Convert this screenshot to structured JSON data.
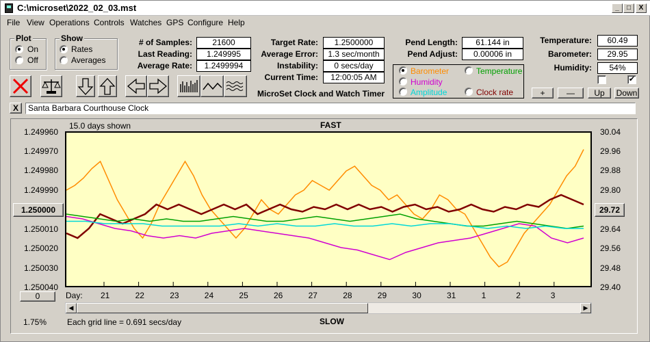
{
  "window": {
    "title": "C:\\microset\\2022_02_03.mst"
  },
  "title_buttons": {
    "min": "_",
    "max": "□",
    "close": "X"
  },
  "menu": [
    "File",
    "View",
    "Operations",
    "Controls",
    "Watches",
    "GPS",
    "Configure",
    "Help"
  ],
  "plot_group": {
    "title": "Plot",
    "options": [
      "On",
      "Off"
    ],
    "selected": "On"
  },
  "show_group": {
    "title": "Show",
    "options": [
      "Rates",
      "Averages"
    ],
    "selected": "Rates"
  },
  "stats_left": [
    {
      "label": "# of Samples:",
      "value": "21600"
    },
    {
      "label": "Last Reading:",
      "value": "1.249995"
    },
    {
      "label": "Average Rate:",
      "value": "1.2499994"
    }
  ],
  "stats_mid": [
    {
      "label": "Target Rate:",
      "value": "1.2500000"
    },
    {
      "label": "Average Error:",
      "value": "1.3 sec/month"
    },
    {
      "label": "Instability:",
      "value": "0 secs/day"
    },
    {
      "label": "Current Time:",
      "value": "12:00:05 AM"
    }
  ],
  "stats_pend": [
    {
      "label": "Pend Length:",
      "value": "61.144 in"
    },
    {
      "label": "Pend Adjust:",
      "value": "0.00006 in"
    }
  ],
  "stats_env": [
    {
      "label": "Temperature:",
      "value": "60.49"
    },
    {
      "label": "Barometer:",
      "value": "29.95"
    },
    {
      "label": "Humidity:",
      "value": "54%"
    }
  ],
  "app_caption": "MicroSet Clock and Watch Timer",
  "sensor_options": [
    {
      "label": "Barometer",
      "color": "#ff8c00",
      "selected": true
    },
    {
      "label": "Temperature",
      "color": "#00a000",
      "selected": false
    },
    {
      "label": "Humidity",
      "color": "#d000d0",
      "selected": false
    },
    {
      "label": "Clock rate",
      "color": "#800000",
      "selected": false
    },
    {
      "label": "Amplitude",
      "color": "#00d8d8",
      "selected": false
    }
  ],
  "adjust_buttons": [
    "+",
    "—",
    "Up",
    "Down"
  ],
  "checkboxes": {
    "left": "",
    "right": "✔"
  },
  "clock_name": "Santa Barbara Courthouse Clock",
  "clear_name_label": "X",
  "chart_info": {
    "days_shown": "15.0 days shown",
    "fast_label": "FAST",
    "slow_label": "SLOW",
    "grid_note": "Each grid line = 0.691 secs/day",
    "percent": "1.75%",
    "center_rate_button": "1.250000",
    "baro_readout_button": "29.72",
    "zero_button": "0",
    "day_label": "Day:"
  },
  "chart_data": {
    "type": "line",
    "x_ticks": [
      "21",
      "22",
      "23",
      "24",
      "25",
      "26",
      "27",
      "28",
      "29",
      "30",
      "31",
      "1",
      "2",
      "3"
    ],
    "y_left_ticks": [
      "1.249960",
      "1.249970",
      "1.249980",
      "1.249990",
      "1.250000",
      "1.250010",
      "1.250020",
      "1.250030",
      "1.250040"
    ],
    "y_right_ticks": [
      "30.04",
      "29.96",
      "29.88",
      "29.80",
      "29.72",
      "29.64",
      "29.56",
      "29.48",
      "29.40"
    ],
    "ylim_left": [
      1.25004,
      1.24996
    ],
    "ylim_right": [
      29.4,
      30.04
    ],
    "series": [
      {
        "name": "Barometer",
        "color": "#ff8c00",
        "values": [
          29.8,
          29.82,
          29.85,
          29.89,
          29.92,
          29.84,
          29.76,
          29.7,
          29.64,
          29.6,
          29.66,
          29.74,
          29.8,
          29.86,
          29.92,
          29.86,
          29.78,
          29.72,
          29.68,
          29.64,
          29.6,
          29.64,
          29.7,
          29.76,
          29.72,
          29.7,
          29.74,
          29.78,
          29.8,
          29.84,
          29.82,
          29.8,
          29.84,
          29.88,
          29.9,
          29.86,
          29.82,
          29.8,
          29.76,
          29.78,
          29.74,
          29.7,
          29.68,
          29.72,
          29.78,
          29.76,
          29.72,
          29.7,
          29.64,
          29.58,
          29.52,
          29.48,
          29.5,
          29.56,
          29.62,
          29.66,
          29.7,
          29.74,
          29.8,
          29.86,
          29.9,
          29.97
        ]
      },
      {
        "name": "Clock rate",
        "color": "#800000",
        "values": [
          29.62,
          29.6,
          29.64,
          29.7,
          29.68,
          29.66,
          29.68,
          29.7,
          29.74,
          29.72,
          29.74,
          29.72,
          29.7,
          29.72,
          29.74,
          29.72,
          29.74,
          29.7,
          29.72,
          29.74,
          29.72,
          29.71,
          29.73,
          29.72,
          29.74,
          29.72,
          29.74,
          29.72,
          29.73,
          29.71,
          29.73,
          29.74,
          29.72,
          29.73,
          29.71,
          29.72,
          29.74,
          29.72,
          29.71,
          29.73,
          29.72,
          29.74,
          29.73,
          29.76,
          29.78,
          29.76,
          29.74
        ]
      },
      {
        "name": "Temperature",
        "color": "#00a000",
        "values": [
          29.7,
          29.69,
          29.68,
          29.67,
          29.68,
          29.67,
          29.68,
          29.67,
          29.67,
          29.68,
          29.69,
          29.68,
          29.67,
          29.67,
          29.68,
          29.69,
          29.68,
          29.67,
          29.68,
          29.69,
          29.7,
          29.68,
          29.67,
          29.66,
          29.65,
          29.65,
          29.66,
          29.67,
          29.66,
          29.65,
          29.64,
          29.65
        ]
      },
      {
        "name": "Humidity",
        "color": "#d000d0",
        "values": [
          29.69,
          29.68,
          29.66,
          29.64,
          29.63,
          29.61,
          29.6,
          29.61,
          29.6,
          29.62,
          29.63,
          29.64,
          29.63,
          29.62,
          29.61,
          29.6,
          29.58,
          29.56,
          29.55,
          29.53,
          29.51,
          29.54,
          29.56,
          29.58,
          29.59,
          29.6,
          29.62,
          29.64,
          29.66,
          29.65,
          29.6,
          29.58,
          29.6
        ]
      },
      {
        "name": "Amplitude",
        "color": "#00d8d8",
        "values": [
          29.67,
          29.67,
          29.66,
          29.66,
          29.66,
          29.65,
          29.65,
          29.65,
          29.65,
          29.66,
          29.65,
          29.66,
          29.65,
          29.65,
          29.66,
          29.65,
          29.65,
          29.66,
          29.65,
          29.66,
          29.66,
          29.65,
          29.64,
          29.65,
          29.64,
          29.65,
          29.64,
          29.64
        ]
      }
    ]
  }
}
